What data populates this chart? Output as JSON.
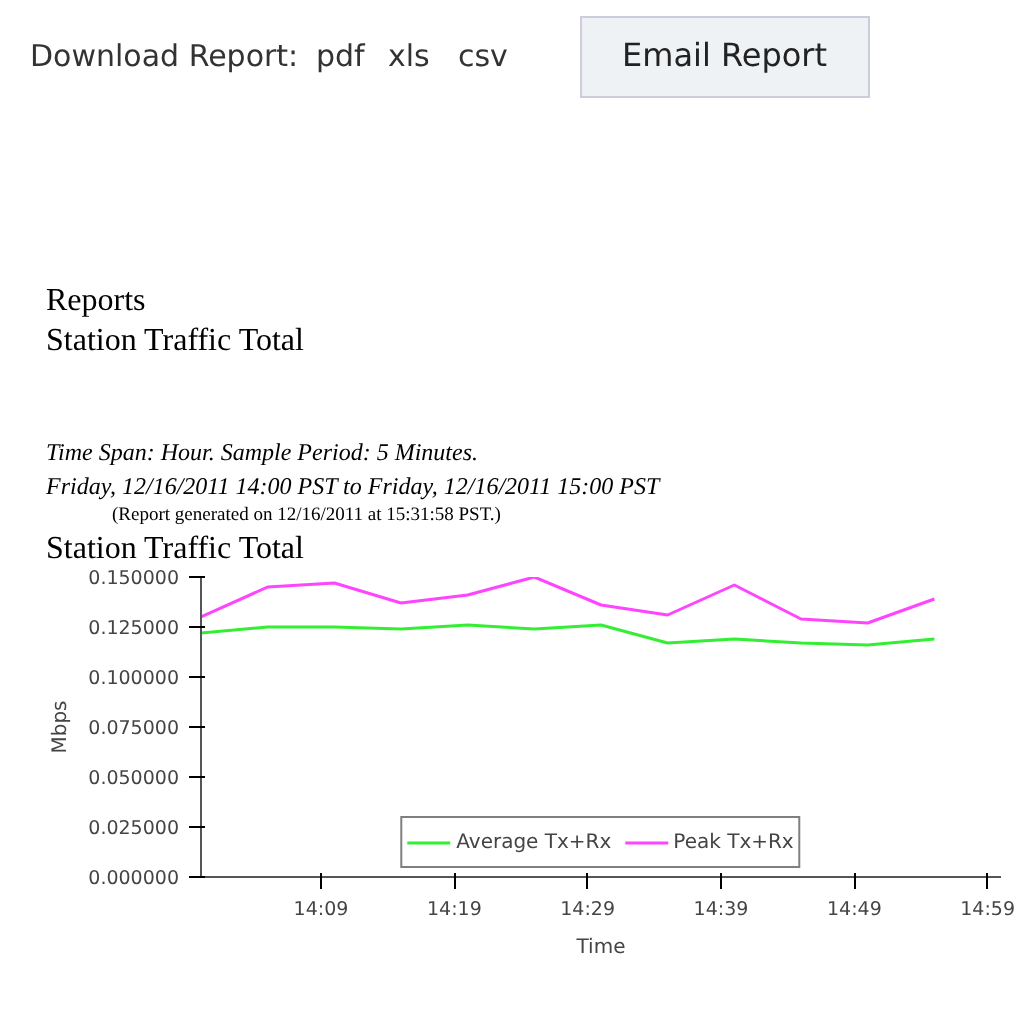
{
  "chart_data": {
    "type": "line",
    "title": "Station Traffic Total",
    "xlabel": "Time",
    "ylabel": "Mbps",
    "annotations": [
      "Download Report:",
      "pdf",
      "xls",
      "csv",
      "Email Report",
      "Reports",
      "Station Traffic Total",
      "Time Span: Hour. Sample Period: 5 Minutes.",
      "Friday, 12/16/2011 14:00 PST to Friday, 12/16/2011 15:00 PST",
      "(Report generated on 12/16/2011 at 15:31:58 PST.)"
    ],
    "x": [
      14.0,
      14.0833,
      14.1667,
      14.25,
      14.3333,
      14.4167,
      14.5,
      14.5833,
      14.6667,
      14.75,
      14.8333,
      14.9167
    ],
    "series": [
      {
        "name": "Average Tx+Rx",
        "color": "#33ee33",
        "values": [
          0.122,
          0.125,
          0.125,
          0.124,
          0.126,
          0.124,
          0.126,
          0.117,
          0.119,
          0.117,
          0.116,
          0.119
        ]
      },
      {
        "name": "Peak Tx+Rx",
        "color": "#ff44ff",
        "values": [
          0.13,
          0.145,
          0.147,
          0.137,
          0.141,
          0.15,
          0.136,
          0.131,
          0.146,
          0.129,
          0.127,
          0.139
        ]
      }
    ],
    "xlim": [
      14.0,
      15.0
    ],
    "xticks": [
      {
        "value": 14.15,
        "label": "14:09"
      },
      {
        "value": 14.3167,
        "label": "14:19"
      },
      {
        "value": 14.4833,
        "label": "14:29"
      },
      {
        "value": 14.65,
        "label": "14:39"
      },
      {
        "value": 14.8167,
        "label": "14:49"
      },
      {
        "value": 14.9833,
        "label": "14:59"
      }
    ],
    "ylim": [
      0,
      0.15
    ],
    "yticks": [
      {
        "value": 0,
        "label": "0.000000"
      },
      {
        "value": 0.025,
        "label": "0.025000"
      },
      {
        "value": 0.05,
        "label": "0.050000"
      },
      {
        "value": 0.075,
        "label": "0.075000"
      },
      {
        "value": 0.1,
        "label": "0.100000"
      },
      {
        "value": 0.125,
        "label": "0.125000"
      },
      {
        "value": 0.15,
        "label": "0.150000"
      }
    ],
    "grid": false,
    "legend": "bottom",
    "marker": "none",
    "line_style": "solid"
  }
}
